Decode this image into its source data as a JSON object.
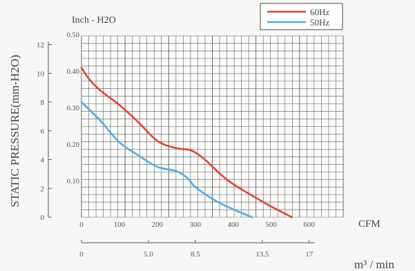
{
  "chart_data": {
    "type": "line",
    "ylabel": "STATIC PRESSURE(mm-H2O)",
    "secondary_ylabel": "Inch - H2O",
    "xlabel_primary": "CFM",
    "xlabel_secondary": "m³ / min",
    "x_cfm_ticks": [
      "0",
      "100",
      "200",
      "300",
      "400",
      "500",
      "600"
    ],
    "x_m3_ticks": [
      "0",
      "5.0",
      "8.5",
      "13.5",
      "17"
    ],
    "y_mm_ticks": [
      "0",
      "2",
      "4",
      "6",
      "8",
      "10",
      "12"
    ],
    "y_inch_ticks": [
      "0.10",
      "0.20",
      "0.30",
      "0.40",
      "0.50"
    ],
    "xlim": [
      0,
      690
    ],
    "ylim": [
      0,
      12.6
    ],
    "legend_position": "top-right",
    "series": [
      {
        "name": "60Hz",
        "color": "#e8412c",
        "points": [
          [
            0,
            10.4
          ],
          [
            20,
            9.6
          ],
          [
            50,
            8.8
          ],
          [
            100,
            7.8
          ],
          [
            150,
            6.6
          ],
          [
            200,
            5.3
          ],
          [
            250,
            4.8
          ],
          [
            280,
            4.7
          ],
          [
            300,
            4.5
          ],
          [
            330,
            3.9
          ],
          [
            370,
            2.9
          ],
          [
            400,
            2.3
          ],
          [
            450,
            1.5
          ],
          [
            500,
            0.75
          ],
          [
            555,
            0
          ]
        ]
      },
      {
        "name": "50Hz",
        "color": "#4aaee6",
        "points": [
          [
            0,
            8.0
          ],
          [
            50,
            6.7
          ],
          [
            100,
            5.2
          ],
          [
            150,
            4.3
          ],
          [
            200,
            3.5
          ],
          [
            250,
            3.2
          ],
          [
            280,
            2.7
          ],
          [
            300,
            2.1
          ],
          [
            350,
            1.2
          ],
          [
            400,
            0.55
          ],
          [
            450,
            0
          ]
        ]
      }
    ]
  }
}
